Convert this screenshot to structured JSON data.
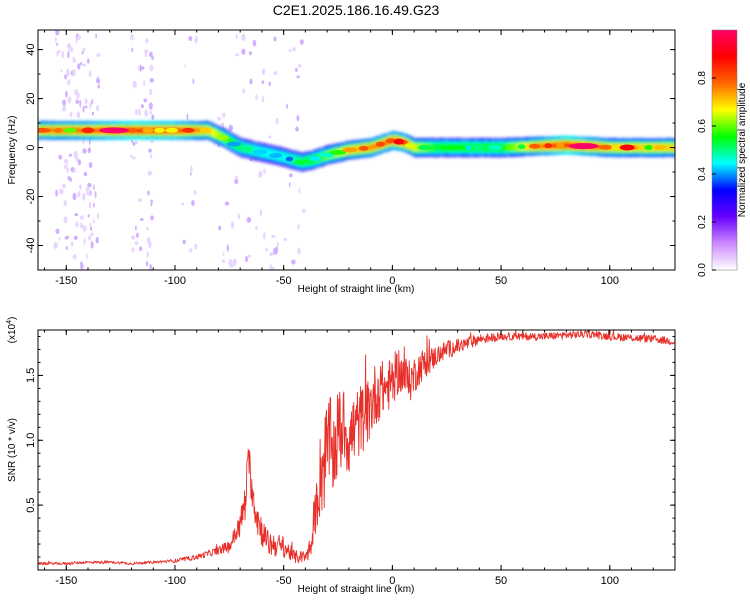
{
  "title": "C2E1.2025.186.16.49.G23",
  "chart_data": [
    {
      "type": "heatmap",
      "xlabel": "Height of straight line (km)",
      "ylabel": "Frequency (Hz)",
      "xlim": [
        -163,
        130
      ],
      "ylim": [
        -50,
        48
      ],
      "xticks": [
        -150,
        -100,
        -50,
        0,
        50,
        100
      ],
      "yticks": [
        -40,
        -20,
        0,
        20,
        40
      ],
      "colorbar": {
        "label": "Normalized spectral amplitude",
        "range": [
          0,
          1
        ],
        "ticks": [
          0.0,
          0.2,
          0.4,
          0.6,
          0.8
        ],
        "stops": [
          "#ffffff",
          "#cc88ff",
          "#6600ff",
          "#0000ff",
          "#00ffff",
          "#00ff00",
          "#ffff00",
          "#ff6600",
          "#ff0000",
          "#ff0066"
        ]
      },
      "ridge": {
        "x": [
          -163,
          -140,
          -120,
          -100,
          -85,
          -78,
          -70,
          -60,
          -50,
          -42,
          -37,
          -30,
          -20,
          -10,
          0,
          5,
          10,
          20,
          50,
          80,
          100,
          130
        ],
        "y": [
          7,
          7,
          7,
          7,
          7,
          4,
          0,
          -2,
          -4,
          -6,
          -5,
          -3,
          -1,
          0,
          3,
          2,
          0,
          0,
          0,
          1,
          0,
          0
        ],
        "amplitude": [
          0.75,
          0.8,
          0.9,
          0.85,
          0.7,
          0.6,
          0.5,
          0.45,
          0.45,
          0.5,
          0.55,
          0.6,
          0.7,
          0.75,
          0.8,
          0.8,
          0.65,
          0.55,
          0.55,
          0.9,
          0.7,
          0.7
        ]
      }
    },
    {
      "type": "line",
      "xlabel": "Height of straight line (km)",
      "ylabel": "SNR (10 * v/v)",
      "yscale_label": "(x10",
      "yscale_exp": "4",
      "yscale_close": ")",
      "xlim": [
        -163,
        130
      ],
      "ylim": [
        0,
        1.85
      ],
      "xticks": [
        -150,
        -100,
        -50,
        0,
        50,
        100
      ],
      "yticks": [
        0.5,
        1.0,
        1.5
      ],
      "ytick_labels": [
        "0.5",
        "1.0",
        "1.5"
      ],
      "color": "#e8302a",
      "series": [
        {
          "x": [
            -163,
            -150,
            -140,
            -130,
            -120,
            -110,
            -100,
            -90,
            -80,
            -75,
            -70,
            -68,
            -66,
            -64,
            -62,
            -60,
            -57,
            -55,
            -50,
            -45,
            -40,
            -37,
            -35,
            -33,
            -31,
            -29,
            -27,
            -25,
            -22,
            -20,
            -17,
            -15,
            -12,
            -10,
            -8,
            -5,
            -3,
            0,
            3,
            5,
            8,
            10,
            12,
            15,
            18,
            20,
            25,
            30,
            35,
            40,
            50,
            60,
            70,
            80,
            90,
            100,
            110,
            120,
            130
          ],
          "y": [
            0.05,
            0.05,
            0.06,
            0.06,
            0.05,
            0.06,
            0.07,
            0.1,
            0.15,
            0.18,
            0.35,
            0.5,
            0.85,
            0.55,
            0.4,
            0.3,
            0.2,
            0.2,
            0.18,
            0.1,
            0.1,
            0.2,
            0.5,
            0.75,
            0.85,
            1.0,
            0.9,
            1.05,
            1.1,
            1.0,
            1.1,
            1.15,
            1.2,
            1.25,
            1.35,
            1.4,
            1.4,
            1.45,
            1.55,
            1.5,
            1.45,
            1.5,
            1.55,
            1.6,
            1.62,
            1.65,
            1.7,
            1.72,
            1.75,
            1.78,
            1.8,
            1.8,
            1.8,
            1.81,
            1.82,
            1.8,
            1.79,
            1.78,
            1.76
          ],
          "noise": [
            0.01,
            0.01,
            0.01,
            0.01,
            0.01,
            0.01,
            0.015,
            0.02,
            0.03,
            0.05,
            0.1,
            0.15,
            0.15,
            0.15,
            0.15,
            0.12,
            0.1,
            0.1,
            0.08,
            0.05,
            0.05,
            0.1,
            0.2,
            0.35,
            0.4,
            0.35,
            0.35,
            0.35,
            0.3,
            0.3,
            0.3,
            0.28,
            0.25,
            0.25,
            0.25,
            0.22,
            0.2,
            0.2,
            0.18,
            0.18,
            0.16,
            0.15,
            0.13,
            0.12,
            0.1,
            0.08,
            0.07,
            0.06,
            0.05,
            0.04,
            0.03,
            0.03,
            0.03,
            0.03,
            0.03,
            0.03,
            0.03,
            0.03,
            0.03
          ]
        }
      ]
    }
  ]
}
